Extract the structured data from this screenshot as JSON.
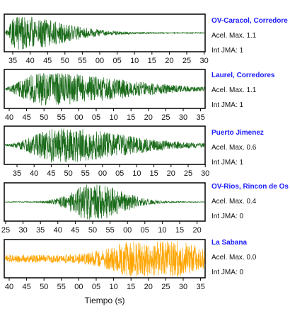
{
  "chart_data": {
    "type": "line",
    "xlabel": "Tiempo (s)",
    "panels": [
      {
        "station": "OV-Caracol, Corredore",
        "accel": "Acel. Max. 1.1",
        "jma": "Int JMA: 1",
        "color": "#1a6b1a",
        "tick_labels": [
          "35",
          "40",
          "45",
          "50",
          "55",
          "00",
          "05",
          "10",
          "15",
          "20",
          "25",
          "30"
        ],
        "waveform": {
          "onset": 0.0,
          "peak": 0.06,
          "decay": 0.22,
          "amplitude": 0.95,
          "noise": 0.03,
          "seed": 11
        }
      },
      {
        "station": "Laurel, Corredores",
        "accel": "Acel. Max. 1.1",
        "jma": "Int JMA: 1",
        "color": "#1a6b1a",
        "tick_labels": [
          "40",
          "45",
          "50",
          "55",
          "00",
          "05",
          "10",
          "15",
          "20",
          "25",
          "30",
          "35"
        ],
        "waveform": {
          "onset": 0.0,
          "peak": 0.2,
          "decay": 0.35,
          "amplitude": 0.85,
          "noise": 0.06,
          "seed": 23
        }
      },
      {
        "station": "Puerto Jimenez",
        "accel": "Acel. Max. 0.6",
        "jma": "Int JMA: 1",
        "color": "#1a6b1a",
        "tick_labels": [
          "35",
          "40",
          "45",
          "50",
          "55",
          "00",
          "05",
          "10",
          "15",
          "20",
          "25",
          "30"
        ],
        "waveform": {
          "onset": 0.03,
          "peak": 0.28,
          "decay": 0.3,
          "amplitude": 0.9,
          "noise": 0.08,
          "seed": 37
        }
      },
      {
        "station": "OV-Rios, Rincon de Os",
        "accel": "Acel. Max. 0.4",
        "jma": "Int JMA: 0",
        "color": "#1a6b1a",
        "tick_labels": [
          "25",
          "30",
          "35",
          "40",
          "45",
          "50",
          "55",
          "00",
          "05",
          "10",
          "15",
          "20"
        ],
        "waveform": {
          "onset": 0.15,
          "peak": 0.45,
          "decay": 0.14,
          "amplitude": 1.0,
          "noise": 0.02,
          "seed": 51
        }
      },
      {
        "station": "La Sabana",
        "accel": "Acel. Max. 0.0",
        "jma": "Int JMA: 0",
        "color": "#ffa500",
        "tick_labels": [
          "40",
          "45",
          "50",
          "55",
          "00",
          "05",
          "10",
          "15",
          "20",
          "25",
          "30",
          "35"
        ],
        "waveform": {
          "onset": 0.0,
          "peak": 0.75,
          "decay": 0.18,
          "amplitude": 1.0,
          "noise": 0.22,
          "seed": 77
        }
      }
    ]
  }
}
